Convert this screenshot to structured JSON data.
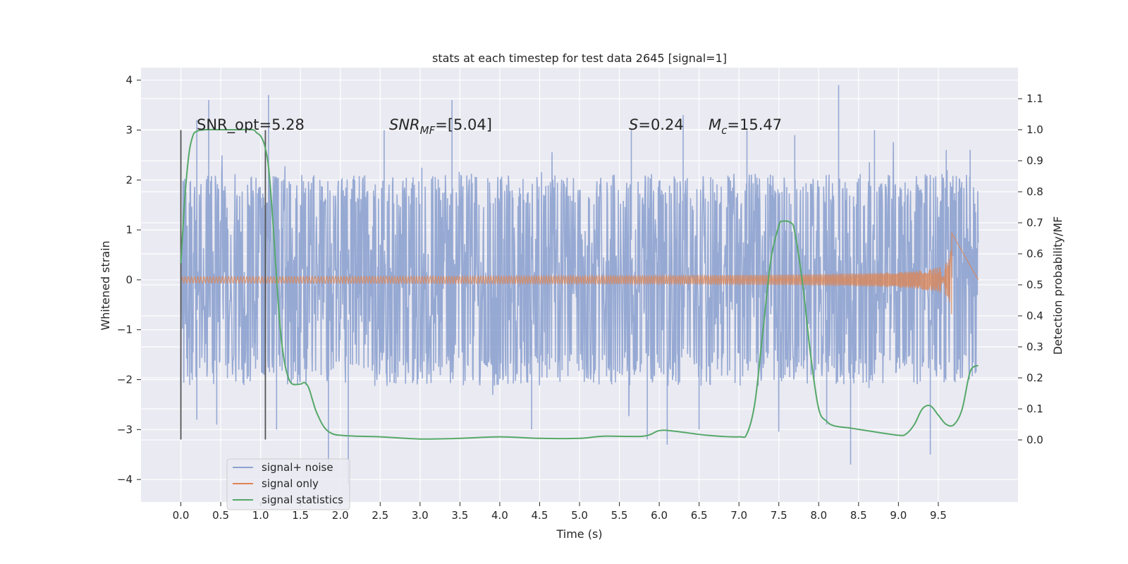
{
  "chart_data": {
    "type": "line",
    "title": "stats at each timestep for test data 2645 [signal=1]",
    "xlabel": "Time (s)",
    "ylabel": "Whitened strain",
    "y2label": "Detection probability/MF",
    "xlim": [
      -0.5,
      10.5
    ],
    "ylim": [
      -4.45,
      4.25
    ],
    "y2lim": [
      -0.2,
      1.2
    ],
    "x_ticks": [
      0.0,
      0.5,
      1.0,
      1.5,
      2.0,
      2.5,
      3.0,
      3.5,
      4.0,
      4.5,
      5.0,
      5.5,
      6.0,
      6.5,
      7.0,
      7.5,
      8.0,
      8.5,
      9.0,
      9.5
    ],
    "x_tick_labels": [
      "0.0",
      "0.5",
      "1.0",
      "1.5",
      "2.0",
      "2.5",
      "3.0",
      "3.5",
      "4.0",
      "4.5",
      "5.0",
      "5.5",
      "6.0",
      "6.5",
      "7.0",
      "7.5",
      "8.0",
      "8.5",
      "9.0",
      "9.5"
    ],
    "y_ticks": [
      4,
      3,
      2,
      1,
      0,
      -1,
      -2,
      -3,
      -4
    ],
    "y_tick_labels": [
      "4",
      "3",
      "2",
      "1",
      "0",
      "−1",
      "−2",
      "−3",
      "−4"
    ],
    "y2_ticks": [
      1.1,
      1.0,
      0.9,
      0.8,
      0.7,
      0.6,
      0.5,
      0.4,
      0.3,
      0.2,
      0.1,
      0.0
    ],
    "y2_tick_labels": [
      "1.1",
      "1.0",
      "0.9",
      "0.8",
      "0.7",
      "0.6",
      "0.5",
      "0.4",
      "0.3",
      "0.2",
      "0.1",
      "0.0"
    ],
    "grid": true,
    "legend_position": "lower-left",
    "annotations": {
      "snr_opt": "SNR_opt=5.28",
      "snr_mf_base": "SNR",
      "snr_mf_sub": "MF",
      "snr_mf_value": "=[5.04]",
      "s_var": "S",
      "s_value": "=0.24",
      "mc_var": "M",
      "mc_sub": "c",
      "mc_value": "=15.47"
    },
    "vertical_markers": [
      {
        "x": 0.0,
        "ymin": -3.2,
        "ymax": 3.0
      },
      {
        "x": 1.06,
        "ymin": -3.2,
        "ymax": 3.0
      }
    ],
    "series": [
      {
        "name": "signal+ noise",
        "color": "#8da2cf",
        "axis": "left",
        "x_range": [
          0.0,
          10.0
        ],
        "typical_envelope": [
          -1.7,
          1.7
        ],
        "peaks": [
          {
            "x": 0.2,
            "y": 3.2
          },
          {
            "x": 0.2,
            "y": -2.8
          },
          {
            "x": 0.35,
            "y": 3.6
          },
          {
            "x": 0.45,
            "y": -2.9
          },
          {
            "x": 1.1,
            "y": 3.7
          },
          {
            "x": 1.2,
            "y": -3.0
          },
          {
            "x": 1.85,
            "y": -3.7
          },
          {
            "x": 2.1,
            "y": -4.1
          },
          {
            "x": 2.55,
            "y": 3.0
          },
          {
            "x": 3.4,
            "y": 3.6
          },
          {
            "x": 4.4,
            "y": -3.0
          },
          {
            "x": 5.65,
            "y": 3.0
          },
          {
            "x": 5.85,
            "y": -3.2
          },
          {
            "x": 6.1,
            "y": -3.3
          },
          {
            "x": 6.3,
            "y": 3.3
          },
          {
            "x": 6.5,
            "y": -3.0
          },
          {
            "x": 7.1,
            "y": 3.0
          },
          {
            "x": 7.7,
            "y": 2.9
          },
          {
            "x": 8.1,
            "y": -2.9
          },
          {
            "x": 8.25,
            "y": 3.9
          },
          {
            "x": 8.4,
            "y": -3.7
          },
          {
            "x": 8.7,
            "y": 3.0
          },
          {
            "x": 9.4,
            "y": -3.5
          },
          {
            "x": 9.6,
            "y": 2.6
          },
          {
            "x": 9.9,
            "y": 2.6
          }
        ]
      },
      {
        "name": "signal only",
        "color": "#dd8452",
        "axis": "left",
        "x_range": [
          0.0,
          10.0
        ],
        "chirp_end_x": 9.67,
        "chirp_peak_amplitude": 1.0
      },
      {
        "name": "signal statistics",
        "color": "#55a868",
        "axis": "right",
        "x": [
          0.0,
          0.05,
          0.1,
          0.15,
          0.2,
          0.3,
          0.5,
          0.7,
          0.9,
          0.95,
          1.0,
          1.05,
          1.1,
          1.15,
          1.2,
          1.25,
          1.3,
          1.35,
          1.4,
          1.5,
          1.55,
          1.6,
          1.65,
          1.7,
          1.8,
          1.9,
          2.0,
          2.2,
          2.5,
          3.0,
          3.5,
          4.0,
          4.5,
          5.0,
          5.3,
          5.8,
          6.0,
          6.2,
          6.6,
          7.0,
          7.1,
          7.2,
          7.3,
          7.4,
          7.5,
          7.55,
          7.65,
          7.7,
          7.8,
          7.9,
          8.0,
          8.1,
          8.2,
          8.4,
          8.6,
          9.0,
          9.1,
          9.2,
          9.3,
          9.4,
          9.5,
          9.6,
          9.7,
          9.8,
          9.9,
          10.0
        ],
        "values": [
          0.57,
          0.78,
          0.92,
          0.98,
          0.995,
          1.0,
          1.0,
          1.0,
          1.0,
          0.99,
          0.98,
          0.95,
          0.88,
          0.72,
          0.52,
          0.35,
          0.25,
          0.2,
          0.18,
          0.18,
          0.185,
          0.17,
          0.13,
          0.09,
          0.04,
          0.02,
          0.015,
          0.012,
          0.01,
          0.003,
          0.005,
          0.01,
          0.005,
          0.005,
          0.012,
          0.012,
          0.03,
          0.028,
          0.015,
          0.01,
          0.02,
          0.12,
          0.35,
          0.58,
          0.69,
          0.705,
          0.7,
          0.67,
          0.5,
          0.27,
          0.1,
          0.06,
          0.045,
          0.038,
          0.03,
          0.015,
          0.02,
          0.05,
          0.1,
          0.11,
          0.08,
          0.05,
          0.05,
          0.1,
          0.22,
          0.24
        ]
      }
    ]
  },
  "colors": {
    "plot_background": "#eaeaf2",
    "grid": "#ffffff",
    "text": "#262626",
    "marker": "#555555"
  }
}
